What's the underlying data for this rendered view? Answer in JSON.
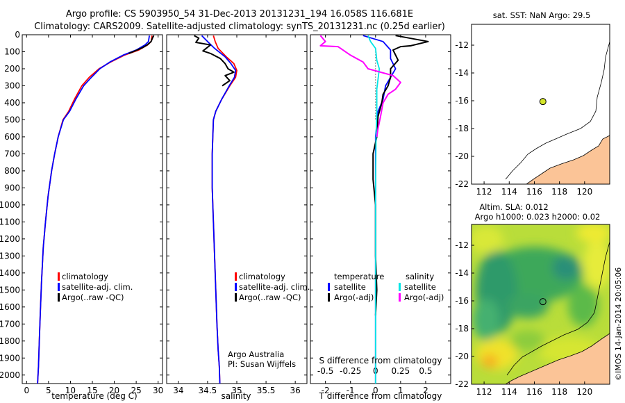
{
  "header": {
    "line1": "Argo profile: CS 5903950_54 31-Dec-2013 20131231_194 16.058S 116.681E",
    "line2": "Climatology: CARS2009. Satellite-adjusted climatology: synTS_20131231.nc (0.25d earlier)"
  },
  "colors": {
    "climatology": "#ff0000",
    "satellite": "#0000ff",
    "argo": "#000000",
    "argo_sal": "#ff00ff",
    "sat_sal": "#00e5e5",
    "land": "#fbc497"
  },
  "chart_data": [
    {
      "type": "line",
      "name": "temperature-profile",
      "xlabel": "temperature (deg C)",
      "ylabel": "",
      "xlim": [
        -1,
        31
      ],
      "ylim": [
        2050,
        0
      ],
      "xticks": [
        0,
        5,
        10,
        15,
        20,
        25,
        30
      ],
      "yticks": [
        0,
        100,
        200,
        300,
        400,
        500,
        600,
        700,
        800,
        900,
        1000,
        1100,
        1200,
        1300,
        1400,
        1500,
        1600,
        1700,
        1800,
        1900,
        2000
      ],
      "legend": [
        "climatology",
        "satellite-adj. clim.",
        "Argo(..raw -QC)"
      ],
      "series": [
        {
          "name": "climatology",
          "color": "#ff0000",
          "x": [
            28.6,
            28.4,
            27.6,
            25.6,
            22.3,
            19.2,
            16.5,
            14.3,
            12.6,
            10.9,
            9.6,
            8.3,
            7.2,
            6.4,
            5.7,
            4.9,
            4.3,
            3.8,
            3.4,
            3.1,
            2.9,
            2.7,
            2.5
          ],
          "y": [
            5,
            40,
            60,
            90,
            120,
            160,
            200,
            250,
            300,
            380,
            450,
            500,
            600,
            700,
            800,
            950,
            1100,
            1250,
            1450,
            1650,
            1800,
            1950,
            2050
          ]
        },
        {
          "name": "satellite",
          "color": "#0000ff",
          "x": [
            28.0,
            27.8,
            27.0,
            25.0,
            22.0,
            19.0,
            16.7,
            14.8,
            13.0,
            11.2,
            9.8,
            8.4,
            7.2,
            6.4,
            5.7,
            4.9,
            4.3,
            3.8,
            3.4,
            3.1,
            2.9,
            2.7,
            2.5
          ],
          "y": [
            5,
            40,
            60,
            90,
            120,
            160,
            200,
            250,
            300,
            380,
            450,
            500,
            600,
            700,
            800,
            950,
            1100,
            1250,
            1450,
            1650,
            1800,
            1950,
            2050
          ]
        },
        {
          "name": "argo",
          "color": "#000000",
          "x": [
            29.0,
            28.7,
            28.4,
            27.5,
            26.5,
            25.2,
            23.3
          ],
          "y": [
            5,
            20,
            40,
            60,
            75,
            90,
            110
          ]
        }
      ]
    },
    {
      "type": "line",
      "name": "salinity-profile",
      "xlabel": "salinity",
      "ylabel": "",
      "xlim": [
        33.8,
        36.2
      ],
      "ylim": [
        2050,
        0
      ],
      "xticks": [
        34,
        34.5,
        35,
        35.5,
        36
      ],
      "legend": [
        "climatology",
        "satellite-adj. clim.",
        "Argo(..raw -QC)"
      ],
      "annotations": [
        "Argo Australia",
        "PI: Susan Wijffels"
      ],
      "series": [
        {
          "name": "climatology",
          "color": "#ff0000",
          "x": [
            34.6,
            34.63,
            34.68,
            34.82,
            34.95,
            35.0,
            34.98,
            34.88,
            34.74,
            34.64,
            34.6,
            34.58,
            34.58,
            34.6,
            34.62,
            34.64,
            34.66,
            34.68,
            34.7,
            34.71
          ],
          "y": [
            5,
            40,
            80,
            130,
            170,
            210,
            250,
            300,
            380,
            450,
            500,
            700,
            900,
            1100,
            1300,
            1500,
            1700,
            1850,
            1950,
            2050
          ]
        },
        {
          "name": "satellite",
          "color": "#0000ff",
          "x": [
            34.4,
            34.5,
            34.62,
            34.8,
            34.9,
            34.98,
            34.96,
            34.87,
            34.74,
            34.64,
            34.6,
            34.58,
            34.58,
            34.6,
            34.62,
            34.64,
            34.66,
            34.68,
            34.7,
            34.71
          ],
          "y": [
            5,
            40,
            80,
            130,
            170,
            210,
            250,
            300,
            380,
            450,
            500,
            700,
            900,
            1100,
            1300,
            1500,
            1700,
            1850,
            1950,
            2050
          ]
        },
        {
          "name": "argo",
          "color": "#000000",
          "x": [
            34.27,
            34.35,
            34.3,
            34.55,
            34.42,
            34.55,
            34.72,
            34.8,
            34.85,
            34.95,
            34.8,
            34.88,
            34.75
          ],
          "y": [
            5,
            20,
            45,
            60,
            95,
            110,
            140,
            170,
            200,
            220,
            240,
            270,
            300
          ]
        }
      ]
    },
    {
      "type": "line",
      "name": "difference-profile",
      "xlabel": "T difference from climatology",
      "xlabel_top": "S difference from climatology",
      "xlim": [
        -2.6,
        3.0
      ],
      "ylim": [
        2050,
        0
      ],
      "xticks": [
        -2,
        -1,
        0,
        1,
        2
      ],
      "xticks_top": [
        "-0.5",
        "-0.25",
        "0",
        "0.25",
        "0.5"
      ],
      "legend_titles": [
        "temperature",
        "salinity"
      ],
      "legend": [
        "satellite",
        "Argo(-adj)",
        "satellite",
        "Argo(-adj)"
      ],
      "series": [
        {
          "name": "T satellite",
          "color": "#0000ff",
          "x": [
            -0.5,
            0.3,
            0.6,
            0.6,
            0.8,
            0.6,
            0.4,
            0.3,
            0.1,
            0.0,
            0.0
          ],
          "y": [
            5,
            40,
            90,
            140,
            200,
            250,
            300,
            380,
            450,
            600,
            2050
          ]
        },
        {
          "name": "T argo",
          "color": "#000000",
          "x": [
            0.8,
            2.1,
            1.4,
            1.0,
            0.7,
            0.9,
            0.6,
            0.6,
            0.5,
            0.3,
            0.25,
            0.1,
            0.05,
            -0.1,
            -0.1,
            0.0,
            0.0,
            0.05,
            0.0
          ],
          "y": [
            5,
            40,
            65,
            70,
            90,
            150,
            200,
            250,
            300,
            350,
            400,
            480,
            600,
            700,
            850,
            1000,
            1300,
            1500,
            1650
          ]
        },
        {
          "name": "S satellite",
          "color": "#00e5e5",
          "x": [
            -0.3,
            -0.2,
            0.0,
            0.05,
            0.15,
            0.1,
            0.05,
            0.05,
            0.02,
            0.0,
            0.0
          ],
          "y": [
            5,
            40,
            80,
            150,
            200,
            260,
            320,
            450,
            600,
            900,
            2050
          ]
        },
        {
          "name": "S argo",
          "color": "#ff00ff",
          "x": [
            -2.2,
            -2.0,
            -2.2,
            -1.5,
            -1.0,
            -0.5,
            -0.3,
            0.2,
            0.7,
            1.0,
            0.8,
            0.5,
            0.3,
            0.2,
            0.1,
            0.05
          ],
          "y": [
            5,
            40,
            65,
            70,
            120,
            160,
            200,
            220,
            240,
            280,
            320,
            350,
            400,
            480,
            550,
            600
          ]
        }
      ]
    },
    {
      "type": "scatter",
      "name": "sst-map",
      "title": "sat. SST: NaN Argo: 29.5",
      "xlim": [
        111,
        122
      ],
      "ylim": [
        -22,
        -10.5
      ],
      "xticks": [
        112,
        114,
        116,
        118,
        120
      ],
      "yticks": [
        -12,
        -14,
        -16,
        -18,
        -20,
        -22
      ],
      "points": [
        {
          "lon": 116.681,
          "lat": -16.058
        }
      ]
    },
    {
      "type": "heatmap",
      "name": "sla-map",
      "title1": "Altim. SLA: 0.012",
      "title2": "Argo h1000: 0.023 h2000: 0.02",
      "xlim": [
        111,
        122
      ],
      "ylim": [
        -22,
        -10.5
      ],
      "xticks": [
        112,
        114,
        116,
        118,
        120
      ],
      "yticks": [
        -12,
        -14,
        -16,
        -18,
        -20,
        -22
      ],
      "points": [
        {
          "lon": 116.681,
          "lat": -16.058
        }
      ]
    }
  ],
  "footer": {
    "stamp": "©IMOS 14-Jan-2014 20:05:06"
  }
}
